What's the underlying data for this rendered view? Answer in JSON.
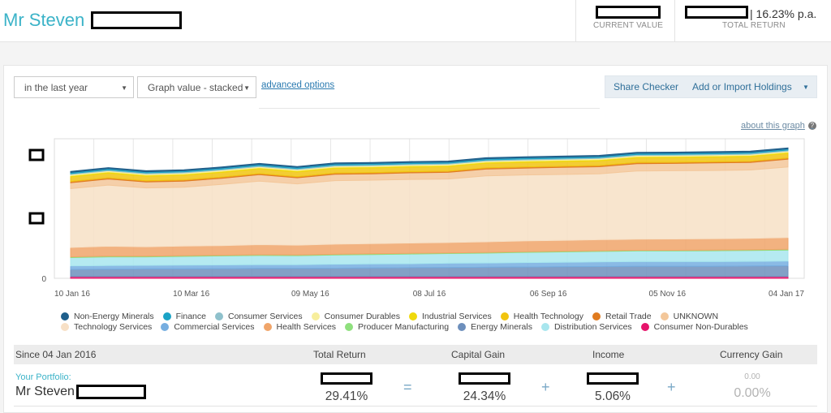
{
  "header": {
    "owner_name": "Mr Steven",
    "current_value_label": "CURRENT VALUE",
    "total_return_value": "| 16.23% p.a.",
    "total_return_label": "TOTAL RETURN"
  },
  "controls": {
    "period_select": "in the last year",
    "graph_select": "Graph value - stacked",
    "advanced_link": "advanced options",
    "share_checker": "Share Checker",
    "add_import": "Add or Import Holdings",
    "about_graph": "about this graph"
  },
  "chart_data": {
    "type": "area",
    "stacked": true,
    "x_tick_labels": [
      "10 Jan 16",
      "10 Mar 16",
      "09 May 16",
      "08 Jul 16",
      "06 Sep 16",
      "05 Nov 16",
      "04 Jan 17"
    ],
    "y_tick_labels": [
      "0"
    ],
    "grid": true,
    "legend_position": "bottom",
    "series": [
      {
        "name": "Non-Energy Minerals",
        "color": "#1f5f8b",
        "values": [
          0.4,
          0.4,
          0.4,
          0.4,
          0.4,
          0.4,
          0.4,
          0.4,
          0.4,
          0.4,
          0.4,
          0.4,
          0.4,
          0.4,
          0.4,
          0.4,
          0.4,
          0.4,
          0.4,
          0.4
        ]
      },
      {
        "name": "Finance",
        "color": "#1ba3c6",
        "values": [
          0.5,
          0.5,
          0.5,
          0.5,
          0.5,
          0.5,
          0.5,
          0.5,
          0.5,
          0.5,
          0.5,
          0.5,
          0.5,
          0.5,
          0.5,
          0.5,
          0.5,
          0.5,
          0.5,
          0.5
        ]
      },
      {
        "name": "Consumer Services",
        "color": "#8fc1cc",
        "values": [
          0.4,
          0.4,
          0.4,
          0.4,
          0.4,
          0.4,
          0.4,
          0.4,
          0.4,
          0.4,
          0.4,
          0.4,
          0.4,
          0.4,
          0.4,
          0.4,
          0.4,
          0.4,
          0.4,
          0.4
        ]
      },
      {
        "name": "Consumer Durables",
        "color": "#f7ee9c",
        "values": [
          0.5,
          0.5,
          0.5,
          0.5,
          0.5,
          0.5,
          0.5,
          0.5,
          0.5,
          0.5,
          0.5,
          0.5,
          0.5,
          0.5,
          0.5,
          0.5,
          0.5,
          0.5,
          0.5,
          0.5
        ]
      },
      {
        "name": "Industrial Services",
        "color": "#efd90c",
        "values": [
          0.5,
          0.5,
          0.5,
          0.5,
          0.5,
          0.5,
          0.5,
          0.5,
          0.5,
          0.5,
          0.5,
          0.5,
          0.5,
          0.5,
          0.5,
          0.5,
          0.5,
          0.5,
          0.5,
          0.5
        ]
      },
      {
        "name": "Health Technology",
        "color": "#f1c40f",
        "values": [
          2,
          2,
          2,
          2,
          2,
          2,
          2,
          2,
          2,
          2,
          2,
          2,
          2,
          2,
          2,
          2,
          2,
          2,
          2,
          2
        ]
      },
      {
        "name": "Retail Trade",
        "color": "#e07b1f",
        "values": [
          0.5,
          0.5,
          0.5,
          0.5,
          0.5,
          0.5,
          0.5,
          0.5,
          0.5,
          0.5,
          0.5,
          0.5,
          0.5,
          0.5,
          0.5,
          0.5,
          0.5,
          0.5,
          0.5,
          0.5
        ]
      },
      {
        "name": "UNKNOWN",
        "color": "#f3c79a",
        "values": [
          2.5,
          2.6,
          2.5,
          2.6,
          2.6,
          2.7,
          2.6,
          2.7,
          2.7,
          2.8,
          2.8,
          2.9,
          2.9,
          3.0,
          3.0,
          3.1,
          3.1,
          3.2,
          3.2,
          3.3
        ]
      },
      {
        "name": "Technology Services",
        "color": "#f7e0c6",
        "values": [
          25,
          26,
          25,
          25,
          26,
          27,
          26,
          27,
          27,
          27,
          27,
          28,
          28,
          28,
          28,
          29,
          29,
          29,
          29,
          30
        ]
      },
      {
        "name": "Commercial Services",
        "color": "#76aee0",
        "values": [
          1.5,
          1.5,
          1.5,
          1.6,
          1.6,
          1.6,
          1.6,
          1.7,
          1.7,
          1.7,
          1.8,
          1.8,
          1.9,
          1.9,
          2.0,
          2.0,
          2.0,
          2.0,
          2.0,
          2.0
        ]
      },
      {
        "name": "Health Services",
        "color": "#f0a56a",
        "values": [
          4,
          4.2,
          4,
          4.1,
          4.1,
          4.3,
          4.2,
          4.3,
          4.3,
          4.4,
          4.4,
          4.5,
          4.6,
          4.6,
          4.7,
          4.7,
          4.8,
          4.8,
          4.9,
          5.0
        ]
      },
      {
        "name": "Producer Manufacturing",
        "color": "#8fe07e",
        "values": [
          0.3,
          0.3,
          0.3,
          0.3,
          0.3,
          0.3,
          0.3,
          0.3,
          0.3,
          0.3,
          0.3,
          0.3,
          0.3,
          0.3,
          0.3,
          0.3,
          0.3,
          0.3,
          0.3,
          0.3
        ]
      },
      {
        "name": "Energy Minerals",
        "color": "#6d8fbc",
        "values": [
          3,
          3.1,
          3.2,
          3.2,
          3.3,
          3.4,
          3.4,
          3.5,
          3.6,
          3.7,
          3.8,
          3.9,
          4.0,
          4.1,
          4.2,
          4.3,
          4.3,
          4.3,
          4.4,
          4.5
        ]
      },
      {
        "name": "Distribution Services",
        "color": "#a8e6ee",
        "values": [
          3.5,
          3.7,
          3.6,
          3.7,
          3.8,
          3.9,
          3.8,
          3.9,
          4.0,
          4.1,
          4.1,
          4.2,
          4.3,
          4.4,
          4.4,
          4.5,
          4.5,
          4.6,
          4.6,
          4.7
        ]
      },
      {
        "name": "Consumer Non-Durables",
        "color": "#e6146b",
        "values": [
          0.8,
          0.8,
          0.8,
          0.8,
          0.8,
          0.8,
          0.8,
          0.8,
          0.8,
          0.8,
          0.8,
          0.8,
          0.8,
          0.8,
          0.8,
          0.8,
          0.8,
          0.8,
          0.8,
          0.8
        ]
      }
    ]
  },
  "summary": {
    "since_label": "Since 04 Jan 2016",
    "col_total_return": "Total Return",
    "col_capital_gain": "Capital Gain",
    "col_income": "Income",
    "col_currency_gain": "Currency Gain",
    "portfolio_label": "Your Portfolio:",
    "portfolio_name": "Mr Steven",
    "total_return_pct": "29.41%",
    "equals": "=",
    "capital_gain_pct": "24.34%",
    "plus1": "+",
    "income_pct": "5.06%",
    "plus2": "+",
    "currency_gain_value": "0.00",
    "currency_gain_pct": "0.00%"
  }
}
